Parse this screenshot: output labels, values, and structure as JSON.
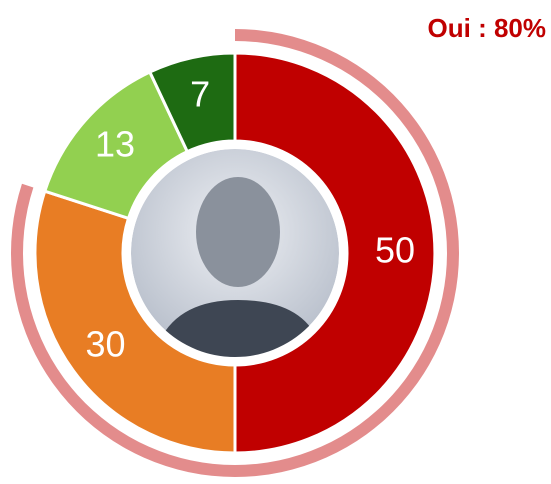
{
  "chart_data": {
    "type": "donut",
    "values": [
      50,
      30,
      13,
      7
    ],
    "colors": [
      "#c00000",
      "#e87d24",
      "#92d050",
      "#1e6b12"
    ],
    "outer_ring": {
      "value": 80,
      "label": "Oui : 80%",
      "color": "#e38c8c"
    }
  }
}
